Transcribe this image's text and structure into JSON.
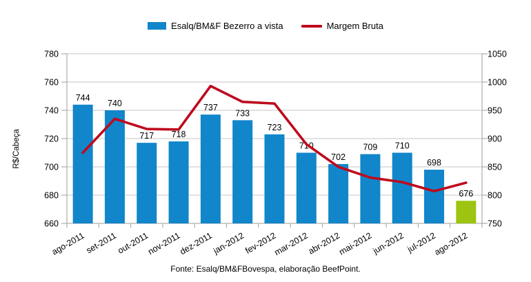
{
  "legend": {
    "series1_label": "Esalq/BM&F Bezerro a vista",
    "series2_label": "Margem Bruta"
  },
  "footer": {
    "source_text": "Fonte: Esalq/BM&FBovespa, elaboração BeefPoint."
  },
  "colors": {
    "bar_blue": "#1186CA",
    "bar_green_highlight": "#9EC412",
    "line_red": "#BE0A1E",
    "grid": "#C6C6C6",
    "axis": "#9C9C9C",
    "text": "#000000"
  },
  "chart_data": {
    "type": "bar+line",
    "categories": [
      "ago-2011",
      "set-2011",
      "out-2011",
      "nov-2011",
      "dez-2011",
      "jan-2012",
      "fev-2012",
      "mar-2012",
      "abr-2012",
      "mai-2012",
      "jun-2012",
      "jul-2012",
      "ago-2012"
    ],
    "series": [
      {
        "name": "Esalq/BM&F Bezerro a vista",
        "type": "bar",
        "axis": "left",
        "values": [
          744,
          740,
          717,
          718,
          737,
          733,
          723,
          710,
          702,
          709,
          710,
          698,
          676
        ],
        "data_labels": true,
        "highlight_last_bar": true
      },
      {
        "name": "Margem Bruta",
        "type": "line",
        "axis": "right",
        "values": [
          875,
          935,
          917,
          916,
          993,
          965,
          962,
          890,
          850,
          831,
          823,
          807,
          822
        ],
        "data_labels": false
      }
    ],
    "left_axis": {
      "label": "R$/Cabeça",
      "min": 660,
      "max": 780,
      "step": 20,
      "ticks": [
        780,
        760,
        740,
        720,
        700,
        680,
        660
      ]
    },
    "right_axis": {
      "label": "",
      "min": 750,
      "max": 1050,
      "step": 50,
      "ticks": [
        1050,
        1000,
        950,
        900,
        850,
        800,
        750
      ]
    },
    "grid": "horizontal",
    "legend_position": "top",
    "title": ""
  }
}
